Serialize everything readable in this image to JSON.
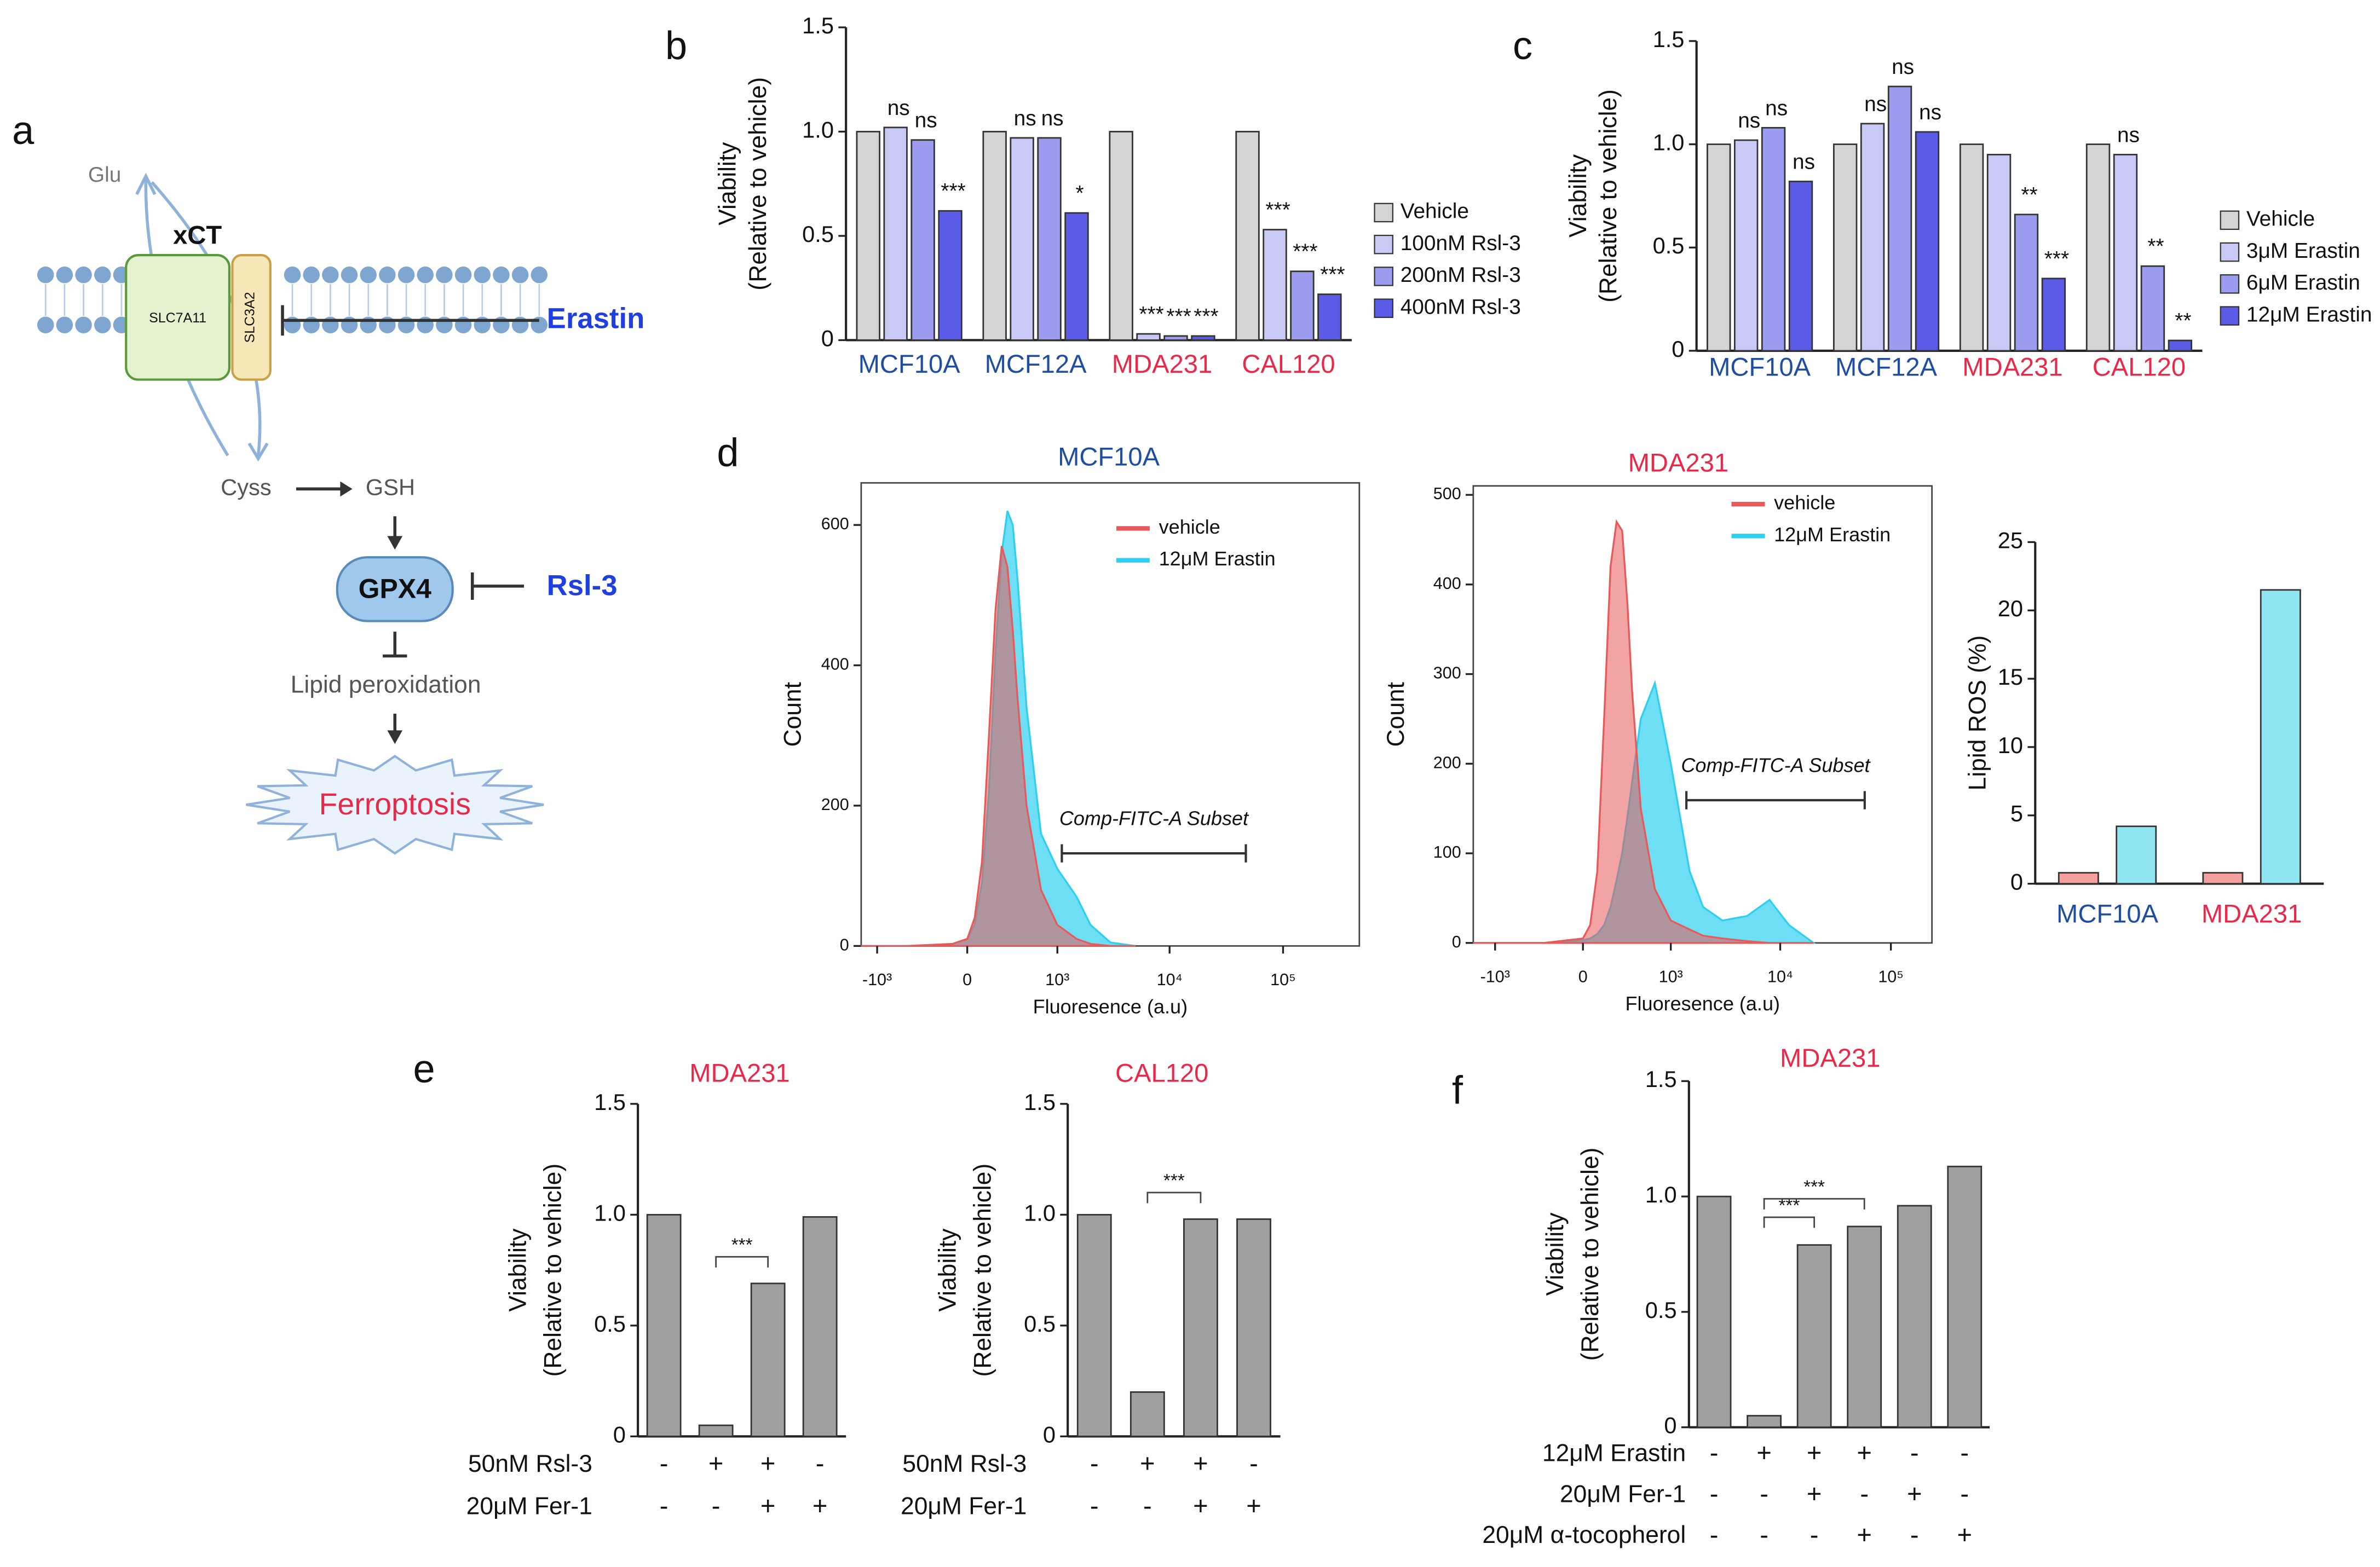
{
  "panels": [
    "a",
    "b",
    "c",
    "d",
    "e",
    "f"
  ],
  "diagram": {
    "glu": "Glu",
    "xct": "xCT",
    "slc7a11": "SLC7A11",
    "slc3a2": "SLC3A2",
    "erastin": "Erastin",
    "cyss": "Cyss",
    "gsh": "GSH",
    "gpx4": "GPX4",
    "rsl3": "Rsl-3",
    "lipid": "Lipid peroxidation",
    "ferroptosis": "Ferroptosis"
  },
  "chart_data": [
    {
      "type": "bar",
      "ylabel": [
        "Viability",
        "(Relative to vehicle)"
      ],
      "categories": [
        "MCF10A",
        "MCF12A",
        "MDA231",
        "CAL120"
      ],
      "category_colors": [
        "#1f4ea0",
        "#1f4ea0",
        "#e8294a",
        "#e8294a"
      ],
      "series": [
        {
          "name": "Vehicle",
          "color": "#d4d4d4",
          "values": [
            1,
            1,
            1,
            1
          ]
        },
        {
          "name": "100nM Rsl-3",
          "color": "#c9c9f6",
          "values": [
            1.02,
            0.97,
            0.03,
            0.53
          ],
          "annotations": [
            "ns",
            "ns",
            "***",
            "***"
          ]
        },
        {
          "name": "200nM Rsl-3",
          "color": "#9b9bf0",
          "values": [
            0.96,
            0.97,
            0.02,
            0.33
          ],
          "annotations": [
            "ns",
            "ns",
            "***",
            "***"
          ]
        },
        {
          "name": "400nM Rsl-3",
          "color": "#5b5be8",
          "values": [
            0.62,
            0.61,
            0.02,
            0.22
          ],
          "annotations": [
            "***",
            "*",
            "***",
            "***"
          ]
        }
      ],
      "ylim": [
        0,
        1.5
      ],
      "yticks": [
        0,
        0.5,
        {
          "value": 1,
          "label": "1.0"
        },
        1.5
      ],
      "legend": "right"
    },
    {
      "type": "bar",
      "ylabel": [
        "Viability",
        "(Relative to vehicle)"
      ],
      "categories": [
        "MCF10A",
        "MCF12A",
        "MDA231",
        "CAL120"
      ],
      "category_colors": [
        "#1f4ea0",
        "#1f4ea0",
        "#e8294a",
        "#e8294a"
      ],
      "series": [
        {
          "name": "Vehicle",
          "color": "#d4d4d4",
          "values": [
            1,
            1,
            1,
            1
          ]
        },
        {
          "name": "3μM Erastin",
          "color": "#c9c9f6",
          "values": [
            1.02,
            1.1,
            0.95,
            0.95
          ],
          "annotations": [
            "ns",
            "ns",
            null,
            "ns"
          ]
        },
        {
          "name": "6μM Erastin",
          "color": "#9b9bf0",
          "values": [
            1.08,
            1.28,
            0.66,
            0.41
          ],
          "annotations": [
            "ns",
            "ns",
            "**",
            "**"
          ]
        },
        {
          "name": "12μM Erastin",
          "color": "#5b5be8",
          "values": [
            0.82,
            1.06,
            0.35,
            0.05
          ],
          "annotations": [
            "ns",
            "ns",
            "***",
            "**"
          ]
        }
      ],
      "ylim": [
        0,
        1.5
      ],
      "yticks": [
        0,
        0.5,
        {
          "value": 1,
          "label": "1.0"
        },
        1.5
      ],
      "legend": "right"
    },
    {
      "type": "area",
      "title": "MCF10A",
      "title_color": "#1f4ea0",
      "xlabel": "Fluoresence  (a.u)",
      "ylabel": "Count",
      "xscale": "asinh",
      "x": [
        -1400,
        -500,
        -100,
        0,
        50,
        100,
        150,
        200,
        250,
        300,
        350,
        400,
        500,
        700,
        1000,
        1500,
        2000,
        3000,
        5000
      ],
      "series": [
        {
          "name": "vehicle",
          "color": "#e85a5a",
          "values": [
            0,
            0,
            3,
            10,
            40,
            120,
            300,
            480,
            570,
            540,
            450,
            350,
            200,
            80,
            30,
            10,
            3,
            0,
            0
          ]
        },
        {
          "name": "12μM Erastin",
          "color": "#2fd0ee",
          "values": [
            0,
            0,
            3,
            10,
            30,
            90,
            220,
            420,
            560,
            620,
            600,
            520,
            340,
            160,
            110,
            70,
            30,
            5,
            0
          ]
        }
      ],
      "xlim": [
        -1400,
        470000
      ],
      "xticks": [
        {
          "value": -1000,
          "label": "-10³"
        },
        0,
        {
          "value": 1000,
          "label": "10³"
        },
        {
          "value": 10000,
          "label": "10⁴"
        },
        {
          "value": 100000,
          "label": "10⁵"
        }
      ],
      "ylim": [
        0,
        660
      ],
      "yticks": [
        0,
        200,
        400,
        600
      ],
      "gate": {
        "label": "Comp-FITC-A Subset",
        "range": [
          1100,
          47000
        ]
      }
    },
    {
      "type": "area",
      "title": "MDA231",
      "title_color": "#e8294a",
      "xlabel": "Fluoresence  (a.u)",
      "ylabel": "Count",
      "xscale": "asinh",
      "x": [
        -1600,
        -300,
        0,
        50,
        100,
        150,
        200,
        250,
        300,
        350,
        400,
        500,
        700,
        1000,
        1500,
        2000,
        3000,
        5000,
        8000,
        12000,
        20000
      ],
      "series": [
        {
          "name": "vehicle",
          "color": "#e85a5a",
          "values": [
            0,
            0,
            5,
            20,
            80,
            250,
            420,
            470,
            460,
            380,
            280,
            150,
            60,
            25,
            15,
            8,
            5,
            2,
            0,
            0,
            0
          ]
        },
        {
          "name": "12μM Erastin",
          "color": "#2fd0ee",
          "values": [
            0,
            0,
            3,
            5,
            10,
            20,
            40,
            70,
            100,
            140,
            180,
            250,
            290,
            200,
            80,
            40,
            25,
            30,
            48,
            20,
            0
          ]
        }
      ],
      "xlim": [
        -1600,
        235000
      ],
      "xticks": [
        {
          "value": -1000,
          "label": "-10³"
        },
        0,
        {
          "value": 1000,
          "label": "10³"
        },
        {
          "value": 10000,
          "label": "10⁴"
        },
        {
          "value": 100000,
          "label": "10⁵"
        }
      ],
      "ylim": [
        0,
        510
      ],
      "yticks": [
        0,
        100,
        200,
        300,
        400,
        500
      ],
      "gate": {
        "label": "Comp-FITC-A Subset",
        "range": [
          1400,
          58000
        ]
      }
    },
    {
      "type": "bar",
      "ylabel": "Lipid ROS (%)",
      "categories": [
        "MCF10A",
        "MDA231"
      ],
      "category_colors": [
        "#1f4ea0",
        "#e8294a"
      ],
      "series": [
        {
          "color": "#f4a0a0",
          "values": [
            0.8,
            0.8
          ]
        },
        {
          "color": "#8fe6f2",
          "values": [
            4.2,
            21.5
          ]
        }
      ],
      "ylim": [
        0,
        25
      ],
      "yticks": [
        0,
        5,
        10,
        15,
        20,
        25
      ]
    },
    {
      "type": "bar",
      "title": "MDA231",
      "title_color": "#e8294a",
      "ylabel": [
        "Viability",
        "(Relative to vehicle)"
      ],
      "values": [
        1.0,
        0.05,
        0.69,
        0.99
      ],
      "color": "#a0a0a0",
      "treatments": [
        {
          "name": "50nM Rsl-3",
          "signs": [
            "-",
            "+",
            "+",
            "-"
          ]
        },
        {
          "name": "20μM Fer-1",
          "signs": [
            "-",
            "-",
            "+",
            "+"
          ]
        }
      ],
      "comparisons": [
        {
          "bars": [
            1,
            2
          ],
          "label": "***"
        }
      ],
      "ylim": [
        0,
        1.5
      ],
      "yticks": [
        0,
        0.5,
        {
          "value": 1,
          "label": "1.0"
        },
        1.5
      ]
    },
    {
      "type": "bar",
      "title": "CAL120",
      "title_color": "#e8294a",
      "ylabel": [
        "Viability",
        "(Relative to vehicle)"
      ],
      "values": [
        1.0,
        0.2,
        0.98,
        0.98
      ],
      "color": "#a0a0a0",
      "treatments": [
        {
          "name": "50nM Rsl-3",
          "signs": [
            "-",
            "+",
            "+",
            "-"
          ]
        },
        {
          "name": "20μM Fer-1",
          "signs": [
            "-",
            "-",
            "+",
            "+"
          ]
        }
      ],
      "comparisons": [
        {
          "bars": [
            1,
            2
          ],
          "label": "***"
        }
      ],
      "ylim": [
        0,
        1.5
      ],
      "yticks": [
        0,
        0.5,
        {
          "value": 1,
          "label": "1.0"
        },
        1.5
      ]
    },
    {
      "type": "bar",
      "title": "MDA231",
      "title_color": "#e8294a",
      "ylabel": [
        "Viability",
        "(Relative to vehicle)"
      ],
      "values": [
        1.0,
        0.05,
        0.79,
        0.87,
        0.96,
        1.13
      ],
      "color": "#a0a0a0",
      "treatments": [
        {
          "name": "12μM Erastin",
          "signs": [
            "-",
            "+",
            "+",
            "+",
            "-",
            "-"
          ]
        },
        {
          "name": "20μM Fer-1",
          "signs": [
            "-",
            "-",
            "+",
            "-",
            "+",
            "-"
          ]
        },
        {
          "name": "20μM α-tocopherol",
          "signs": [
            "-",
            "-",
            "-",
            "+",
            "-",
            "+"
          ]
        }
      ],
      "comparisons": [
        {
          "bars": [
            1,
            2
          ],
          "label": "***"
        },
        {
          "bars": [
            1,
            3
          ],
          "label": "***"
        }
      ],
      "ylim": [
        0,
        1.5
      ],
      "yticks": [
        0,
        0.5,
        {
          "value": 1,
          "label": "1.0"
        },
        1.5
      ]
    }
  ]
}
